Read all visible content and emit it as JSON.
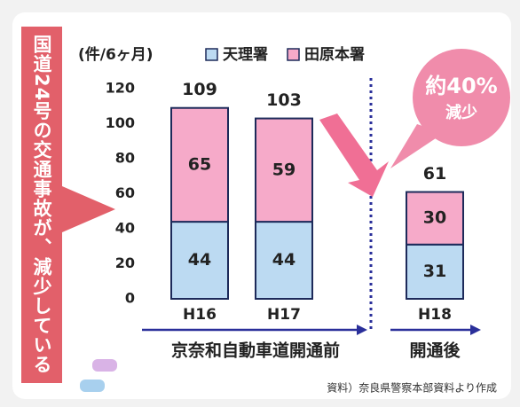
{
  "banner": "国道24号の交通事故が、減少している",
  "callout": [
    "約40%",
    "減少"
  ],
  "periods": [
    "京奈和自動車道開通前",
    "開通後"
  ],
  "source": "資料）奈良県警察本部資料より作成",
  "chart_data": {
    "type": "stacked_bar",
    "unit": "(件/6ヶ月)",
    "categories": [
      "H16",
      "H17",
      "H18"
    ],
    "series": [
      {
        "name": "天理署",
        "color": "#bcdaf2",
        "values": [
          44,
          44,
          31
        ]
      },
      {
        "name": "田原本署",
        "color": "#f6aac9",
        "values": [
          65,
          59,
          30
        ]
      }
    ],
    "totals": [
      109,
      103,
      61
    ],
    "ylim": [
      0,
      120
    ],
    "yticks": [
      0,
      20,
      40,
      60,
      80,
      100,
      120
    ]
  }
}
